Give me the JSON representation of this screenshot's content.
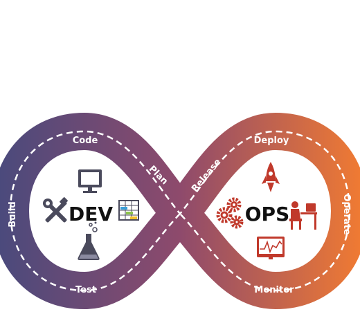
{
  "diagram": {
    "dev_label": "DEV",
    "ops_label": "OPS",
    "stages": {
      "code": "Code",
      "build": "Build",
      "test": "Test",
      "plan": "Plan",
      "release": "Release",
      "deploy": "Deploy",
      "operate": "Operate",
      "monitor": "Monitor"
    },
    "icons": {
      "dev": [
        "monitor-icon",
        "tools-icon",
        "gantt-chart-icon",
        "flask-icon"
      ],
      "ops": [
        "rocket-icon",
        "gears-icon",
        "operator-at-desk-icon",
        "monitoring-chart-icon"
      ]
    },
    "colors": {
      "left": "#4b4a7c",
      "center": "#8e4a6c",
      "right": "#ef7a33",
      "icon": "#c0392b",
      "dev_icon": "#4a4a5c",
      "dash": "#ffffff"
    }
  }
}
